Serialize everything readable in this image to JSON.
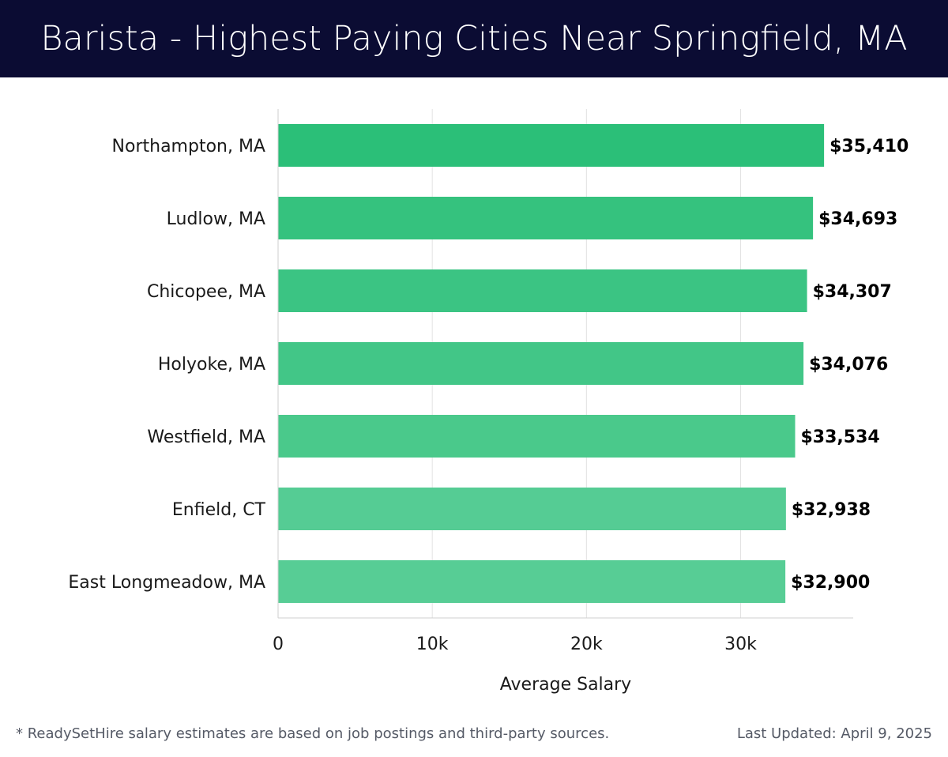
{
  "header": {
    "title": "Barista - Highest Paying Cities Near Springfield, MA"
  },
  "chart_data": {
    "type": "bar",
    "orientation": "horizontal",
    "title": "Barista - Highest Paying Cities Near Springfield, MA",
    "categories": [
      "Northampton, MA",
      "Ludlow, MA",
      "Chicopee, MA",
      "Holyoke, MA",
      "Westfield, MA",
      "Enfield, CT",
      "East Longmeadow, MA"
    ],
    "values": [
      35410,
      34693,
      34307,
      34076,
      33534,
      32938,
      32900
    ],
    "value_labels": [
      "$35,410",
      "$34,693",
      "$34,307",
      "$34,076",
      "$33,534",
      "$32,938",
      "$32,900"
    ],
    "xlabel": "Average Salary",
    "ylabel": "",
    "xlim": [
      0,
      37300
    ],
    "ticks": [
      0,
      10000,
      20000,
      30000
    ],
    "tick_labels": [
      "0",
      "10k",
      "20k",
      "30k"
    ],
    "grid": true,
    "bar_colors": [
      "#2bbf78",
      "#35c27e",
      "#3bc483",
      "#42c687",
      "#4ac98b",
      "#55cc94",
      "#57cd95"
    ]
  },
  "footer": {
    "note": "* ReadySetHire salary estimates are based on job postings and third-party sources.",
    "updated": "Last Updated: April 9, 2025"
  }
}
